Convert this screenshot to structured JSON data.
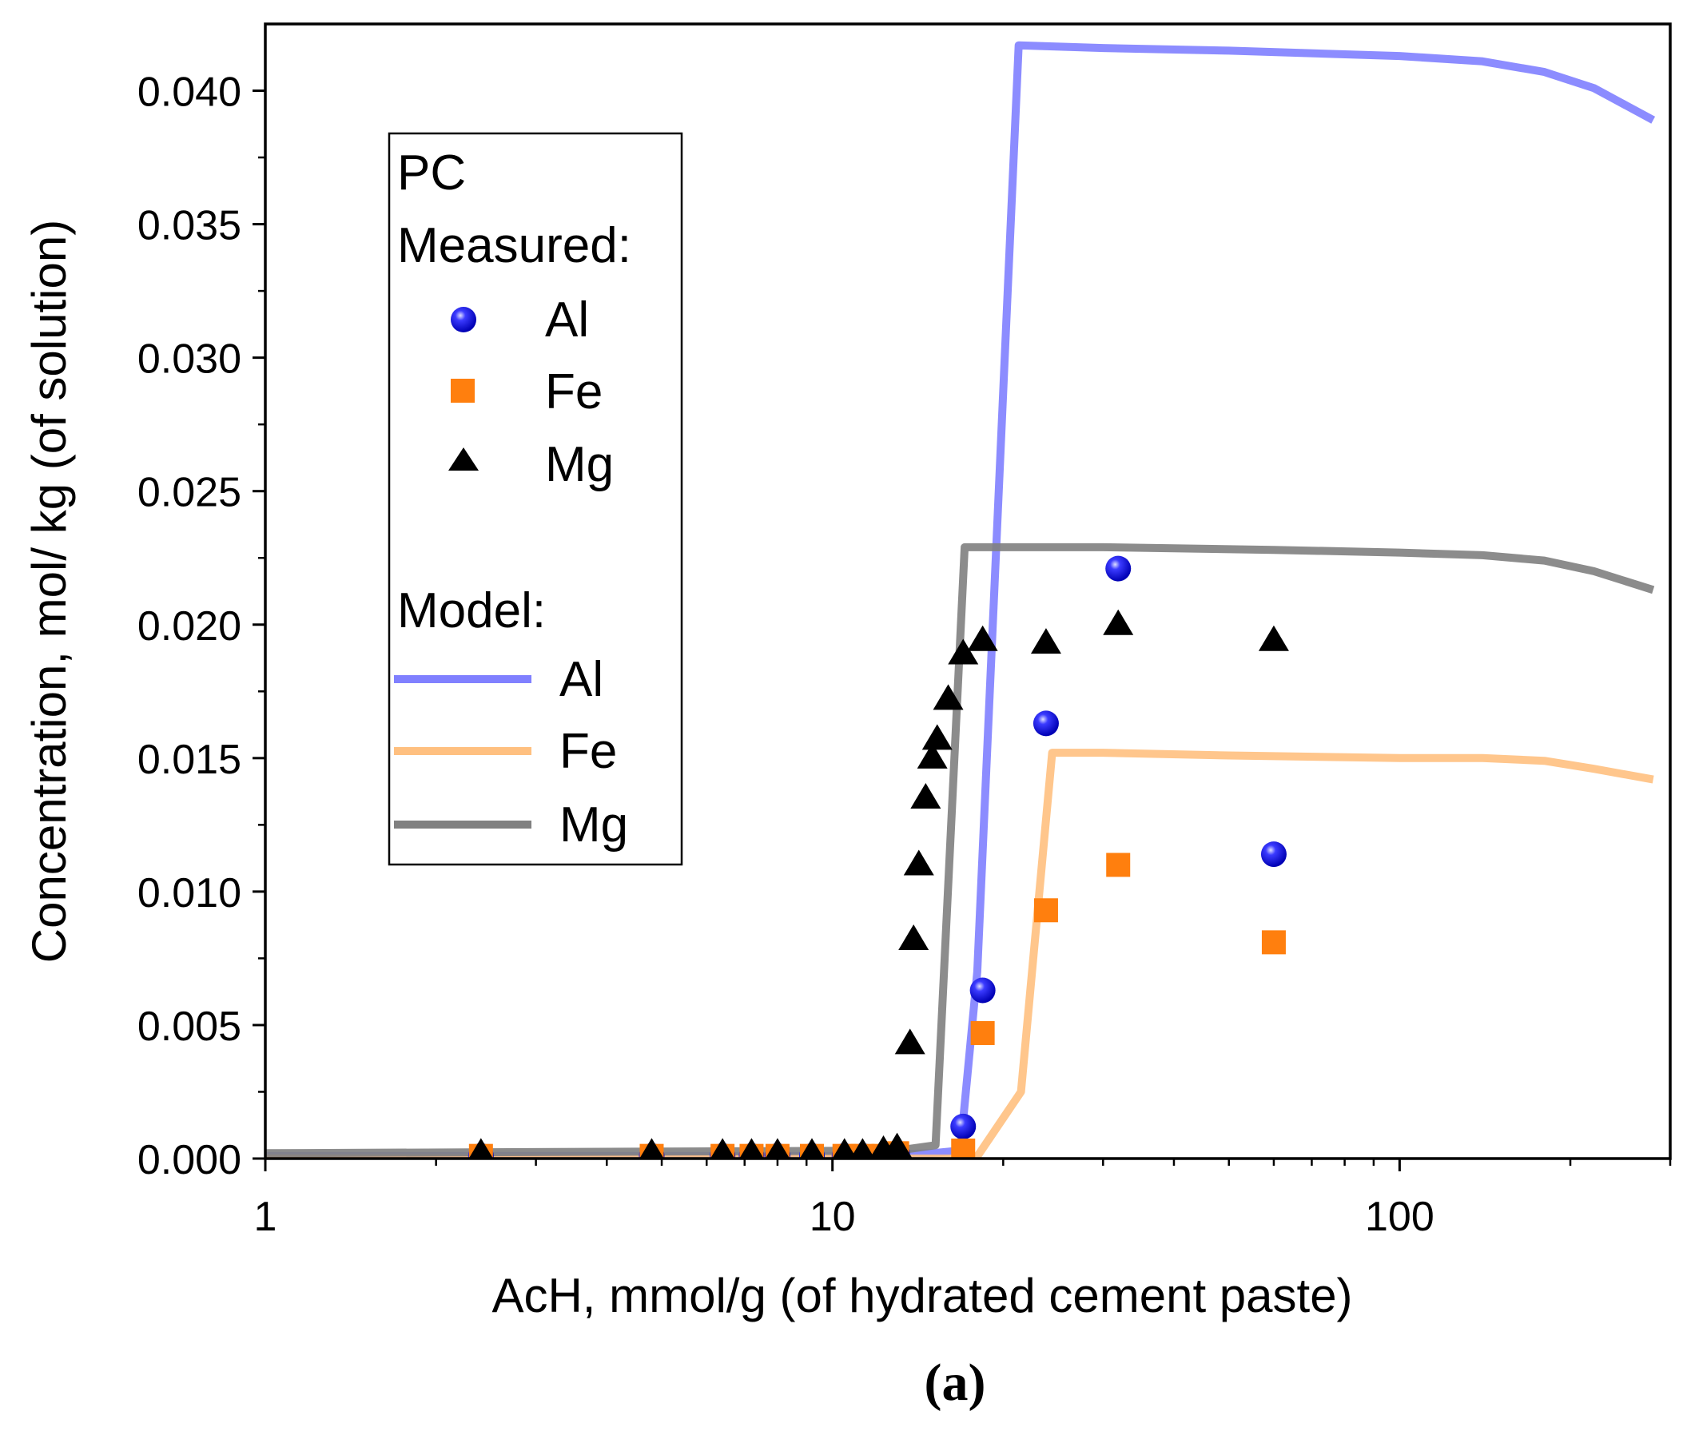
{
  "chart_data": {
    "type": "scatter",
    "panel_label": "(a)",
    "xlabel": "AcH, mmol/g (of hydrated cement paste)",
    "ylabel": "Concentration, mol/ kg (of solution)",
    "x_scale": "log",
    "xlim": [
      1,
      300
    ],
    "ylim": [
      0,
      0.0425
    ],
    "x_ticks": [
      {
        "value": 1,
        "label": "1"
      },
      {
        "value": 10,
        "label": "10"
      },
      {
        "value": 100,
        "label": "100"
      }
    ],
    "y_ticks": [
      {
        "value": 0.0,
        "label": "0.000"
      },
      {
        "value": 0.005,
        "label": "0.005"
      },
      {
        "value": 0.01,
        "label": "0.010"
      },
      {
        "value": 0.015,
        "label": "0.015"
      },
      {
        "value": 0.02,
        "label": "0.020"
      },
      {
        "value": 0.025,
        "label": "0.025"
      },
      {
        "value": 0.03,
        "label": "0.030"
      },
      {
        "value": 0.035,
        "label": "0.035"
      },
      {
        "value": 0.04,
        "label": "0.040"
      }
    ],
    "legend": {
      "placement": "top-left",
      "title": "PC",
      "measured_heading": "Measured:",
      "model_heading": "Model:",
      "measured_items": [
        {
          "label": "Al",
          "marker": "sphere",
          "color": "#1a1aff"
        },
        {
          "label": "Fe",
          "marker": "square",
          "color": "#ff7f0e"
        },
        {
          "label": "Mg",
          "marker": "triangle",
          "color": "#000000"
        }
      ],
      "model_items": [
        {
          "label": "Al",
          "color": "#8080ff"
        },
        {
          "label": "Fe",
          "color": "#ffc080"
        },
        {
          "label": "Mg",
          "color": "#808080"
        }
      ]
    },
    "measured": [
      {
        "name": "Al",
        "marker": "sphere",
        "color": "#1a1aff",
        "points": [
          {
            "x": 2.4,
            "y": 0.0001
          },
          {
            "x": 4.8,
            "y": 0.0001
          },
          {
            "x": 6.4,
            "y": 0.0001
          },
          {
            "x": 7.2,
            "y": 0.0001
          },
          {
            "x": 8.0,
            "y": 0.0001
          },
          {
            "x": 9.2,
            "y": 0.0001
          },
          {
            "x": 10.5,
            "y": 0.0001
          },
          {
            "x": 11.3,
            "y": 0.0001
          },
          {
            "x": 12.3,
            "y": 0.0001
          },
          {
            "x": 13.0,
            "y": 0.0002
          },
          {
            "x": 17.0,
            "y": 0.0012
          },
          {
            "x": 18.4,
            "y": 0.0063
          },
          {
            "x": 23.8,
            "y": 0.0163
          },
          {
            "x": 31.9,
            "y": 0.0221
          },
          {
            "x": 60.0,
            "y": 0.0114
          }
        ]
      },
      {
        "name": "Fe",
        "marker": "square",
        "color": "#ff7f0e",
        "points": [
          {
            "x": 2.4,
            "y": 0.0001
          },
          {
            "x": 4.8,
            "y": 0.0001
          },
          {
            "x": 6.4,
            "y": 0.0001
          },
          {
            "x": 7.2,
            "y": 0.0001
          },
          {
            "x": 8.0,
            "y": 0.0001
          },
          {
            "x": 9.2,
            "y": 0.0001
          },
          {
            "x": 10.5,
            "y": 0.0001
          },
          {
            "x": 11.3,
            "y": 0.0001
          },
          {
            "x": 12.3,
            "y": 0.0001
          },
          {
            "x": 13.0,
            "y": 0.0002
          },
          {
            "x": 17.0,
            "y": 0.0003
          },
          {
            "x": 18.4,
            "y": 0.0047
          },
          {
            "x": 23.8,
            "y": 0.0093
          },
          {
            "x": 31.9,
            "y": 0.011
          },
          {
            "x": 60.0,
            "y": 0.0081
          }
        ]
      },
      {
        "name": "Mg",
        "marker": "triangle",
        "color": "#000000",
        "points": [
          {
            "x": 2.4,
            "y": 0.0002
          },
          {
            "x": 4.8,
            "y": 0.0002
          },
          {
            "x": 6.4,
            "y": 0.0002
          },
          {
            "x": 7.2,
            "y": 0.0002
          },
          {
            "x": 8.0,
            "y": 0.0002
          },
          {
            "x": 9.2,
            "y": 0.0002
          },
          {
            "x": 10.5,
            "y": 0.0002
          },
          {
            "x": 11.3,
            "y": 0.0002
          },
          {
            "x": 12.3,
            "y": 0.0003
          },
          {
            "x": 13.0,
            "y": 0.0004
          },
          {
            "x": 13.7,
            "y": 0.0043
          },
          {
            "x": 13.9,
            "y": 0.0082
          },
          {
            "x": 14.2,
            "y": 0.011
          },
          {
            "x": 14.6,
            "y": 0.0135
          },
          {
            "x": 15.0,
            "y": 0.015
          },
          {
            "x": 15.3,
            "y": 0.0157
          },
          {
            "x": 16.0,
            "y": 0.0172
          },
          {
            "x": 17.0,
            "y": 0.0189
          },
          {
            "x": 18.4,
            "y": 0.0194
          },
          {
            "x": 23.8,
            "y": 0.0193
          },
          {
            "x": 31.9,
            "y": 0.02
          },
          {
            "x": 60.0,
            "y": 0.0194
          }
        ]
      }
    ],
    "model": [
      {
        "name": "Al",
        "color": "#8080ff",
        "x": [
          1,
          10,
          15,
          16.8,
          18.0,
          21.3,
          30,
          50,
          100,
          140,
          180,
          220,
          280
        ],
        "y": [
          0.0001,
          0.0001,
          0.0002,
          0.0003,
          0.007,
          0.0417,
          0.0416,
          0.0415,
          0.0413,
          0.0411,
          0.0407,
          0.0401,
          0.0389
        ]
      },
      {
        "name": "Fe",
        "color": "#ffc080",
        "x": [
          1,
          15,
          17.9,
          21.5,
          24.4,
          30,
          50,
          100,
          140,
          180,
          220,
          280
        ],
        "y": [
          0.0,
          0.0,
          0.0,
          0.0025,
          0.0152,
          0.0152,
          0.0151,
          0.015,
          0.015,
          0.0149,
          0.0146,
          0.0142
        ]
      },
      {
        "name": "Mg",
        "color": "#808080",
        "x": [
          1,
          13,
          15.2,
          17.1,
          30,
          60,
          100,
          140,
          180,
          220,
          280
        ],
        "y": [
          0.0002,
          0.0003,
          0.0005,
          0.0229,
          0.0229,
          0.0228,
          0.0227,
          0.0226,
          0.0224,
          0.022,
          0.0213
        ]
      }
    ]
  }
}
